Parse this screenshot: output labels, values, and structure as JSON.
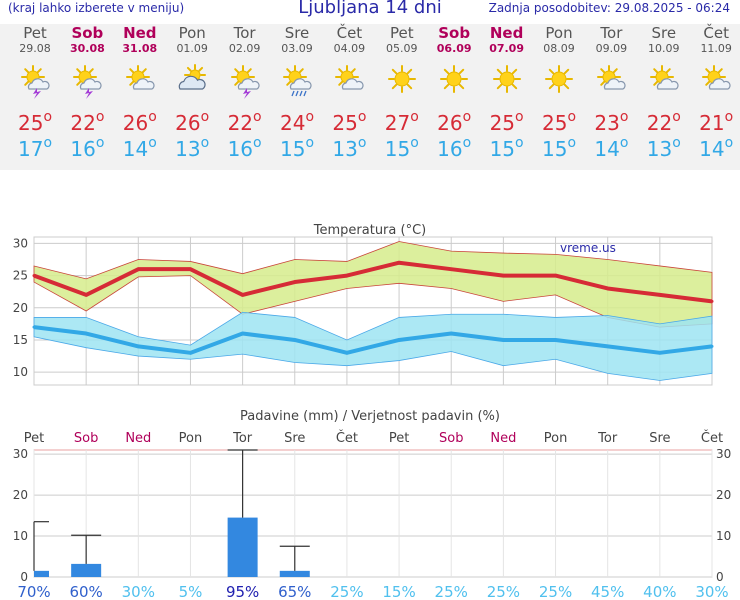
{
  "header": {
    "note": "(kraj lahko izberete v meniju)",
    "title": "Ljubljana 14 dni",
    "updated": "Zadnja posodobitev: 29.08.2025 - 06:24"
  },
  "days": [
    {
      "name": "Pet",
      "date": "29.08",
      "weekend": false,
      "icon": "sun-storm-icon",
      "hi": "25",
      "lo": "17"
    },
    {
      "name": "Sob",
      "date": "30.08",
      "weekend": true,
      "icon": "sun-storm-icon",
      "hi": "22",
      "lo": "16"
    },
    {
      "name": "Ned",
      "date": "31.08",
      "weekend": true,
      "icon": "sun-cloud-icon",
      "hi": "26",
      "lo": "14"
    },
    {
      "name": "Pon",
      "date": "01.09",
      "weekend": false,
      "icon": "cloud-sun-icon",
      "hi": "26",
      "lo": "13"
    },
    {
      "name": "Tor",
      "date": "02.09",
      "weekend": false,
      "icon": "sun-storm-icon",
      "hi": "22",
      "lo": "16"
    },
    {
      "name": "Sre",
      "date": "03.09",
      "weekend": false,
      "icon": "sun-rain-icon",
      "hi": "24",
      "lo": "15"
    },
    {
      "name": "Čet",
      "date": "04.09",
      "weekend": false,
      "icon": "sun-cloud-icon",
      "hi": "25",
      "lo": "13"
    },
    {
      "name": "Pet",
      "date": "05.09",
      "weekend": false,
      "icon": "sun-icon",
      "hi": "27",
      "lo": "15"
    },
    {
      "name": "Sob",
      "date": "06.09",
      "weekend": true,
      "icon": "sun-icon",
      "hi": "26",
      "lo": "16"
    },
    {
      "name": "Ned",
      "date": "07.09",
      "weekend": true,
      "icon": "sun-icon",
      "hi": "25",
      "lo": "15"
    },
    {
      "name": "Pon",
      "date": "08.09",
      "weekend": false,
      "icon": "sun-icon",
      "hi": "25",
      "lo": "15"
    },
    {
      "name": "Tor",
      "date": "09.09",
      "weekend": false,
      "icon": "sun-cloud-icon",
      "hi": "23",
      "lo": "14"
    },
    {
      "name": "Sre",
      "date": "10.09",
      "weekend": false,
      "icon": "sun-cloud-icon",
      "hi": "22",
      "lo": "13"
    },
    {
      "name": "Čet",
      "date": "11.09",
      "weekend": false,
      "icon": "sun-cloud-icon",
      "hi": "21",
      "lo": "14"
    }
  ],
  "degree_symbol": "o",
  "colors": {
    "title": "#2a2aa8",
    "weekend": "#b0005a",
    "high": "#d62b36",
    "low": "#32a8e6",
    "high_band": "#d6ec8c",
    "low_band": "#9ee4f2",
    "bar": "#3388e0",
    "grid": "#cccccc"
  },
  "chart_data": [
    {
      "type": "line",
      "title": "Temperatura (°C)",
      "watermark": "vreme.us",
      "categories": [
        "Pet",
        "Sob",
        "Ned",
        "Pon",
        "Tor",
        "Sre",
        "Čet",
        "Pet",
        "Sob",
        "Ned",
        "Pon",
        "Tor",
        "Sre",
        "Čet"
      ],
      "series": [
        {
          "values": [
            25,
            22,
            26,
            26,
            22,
            24,
            25,
            27,
            26,
            25,
            25,
            23,
            22,
            21
          ]
        },
        {
          "values": [
            17,
            16,
            14,
            13,
            16,
            15,
            13,
            15,
            16,
            15,
            15,
            14,
            13,
            14
          ]
        }
      ],
      "bands": [
        {
          "upper": [
            26.5,
            24.5,
            27.5,
            27.2,
            25.3,
            27.5,
            27.2,
            30.3,
            28.8,
            28.5,
            28.3,
            27.5,
            26.5,
            25.5
          ],
          "lower": [
            24,
            19.5,
            24.8,
            25,
            19,
            21,
            23,
            23.8,
            23,
            21,
            22,
            18.5,
            17,
            17.5
          ]
        },
        {
          "upper": [
            18.5,
            18.5,
            15.5,
            14.2,
            19.3,
            18.5,
            15,
            18.5,
            19,
            19,
            18.5,
            18.8,
            17.5,
            18.7
          ],
          "lower": [
            15.5,
            13.8,
            12.5,
            12,
            12.8,
            11.5,
            11,
            11.8,
            13.2,
            11,
            12,
            9.8,
            8.7,
            9.8
          ]
        }
      ],
      "yticks": [
        10,
        15,
        20,
        25,
        30
      ],
      "ylim": [
        8,
        31
      ],
      "grid": true
    },
    {
      "type": "bar",
      "title": "Padavine (mm) / Verjetnost padavin (%)",
      "categories": [
        "Pet",
        "Sob",
        "Ned",
        "Pon",
        "Tor",
        "Sre",
        "Čet",
        "Pet",
        "Sob",
        "Ned",
        "Pon",
        "Tor",
        "Sre",
        "Čet"
      ],
      "values": [
        1.5,
        3.2,
        0,
        0,
        14.5,
        1.5,
        0,
        0,
        0,
        0,
        0,
        0,
        0,
        0
      ],
      "error_high": [
        13.5,
        10.2,
        0,
        0,
        31,
        7.5,
        0,
        0,
        0,
        0,
        0,
        0,
        0,
        0
      ],
      "probability": [
        "70%",
        "60%",
        "30%",
        "5%",
        "95%",
        "65%",
        "25%",
        "15%",
        "25%",
        "25%",
        "25%",
        "45%",
        "40%",
        "30%"
      ],
      "yticks": [
        0,
        10,
        20,
        30
      ],
      "ylim": [
        0,
        31
      ],
      "grid": true
    }
  ]
}
